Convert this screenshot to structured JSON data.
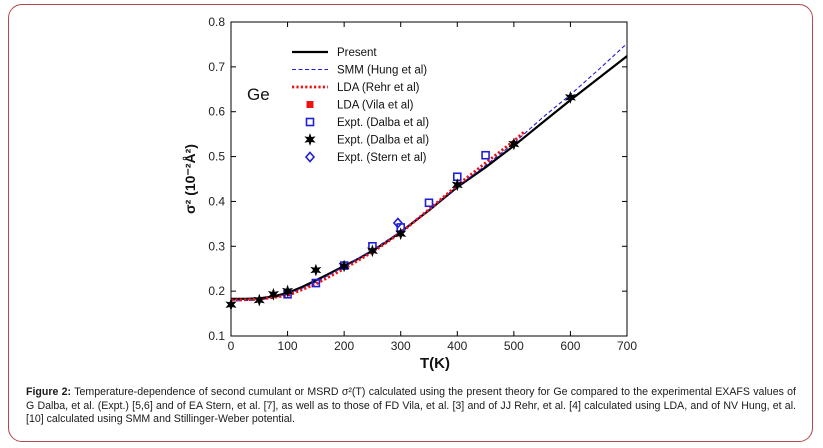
{
  "caption": {
    "label": "Figure 2:",
    "text": "Temperature-dependence of second cumulant or MSRD σ²(T) calculated using the present theory for Ge compared to the experimental EXAFS values of G Dalba, et al. (Expt.) [5,6] and of EA Stern, et al. [7], as well as to those of FD Vila, et al. [3] and of JJ Rehr, et al. [4] calculated using LDA, and of NV Hung, et al. [10] calculated using SMM and Stillinger-Weber potential."
  },
  "chart_data": {
    "type": "line",
    "annotation": "Ge",
    "xlabel": "T(K)",
    "ylabel": "σ² (10⁻²Å²)",
    "xlim": [
      0,
      700
    ],
    "ylim": [
      0.1,
      0.8
    ],
    "xticks": [
      "0",
      "100",
      "200",
      "300",
      "400",
      "500",
      "600",
      "700"
    ],
    "yticks": [
      "0.1",
      "0.2",
      "0.3",
      "0.4",
      "0.5",
      "0.6",
      "0.7",
      "0.8"
    ],
    "legend_position": "top-left",
    "series": [
      {
        "name": "Present",
        "style": "solid-black",
        "color": "#000000",
        "x": [
          0,
          25,
          50,
          75,
          100,
          125,
          150,
          175,
          200,
          225,
          250,
          275,
          300,
          350,
          400,
          450,
          500,
          550,
          600,
          650,
          700
        ],
        "y": [
          0.183,
          0.183,
          0.184,
          0.188,
          0.196,
          0.209,
          0.224,
          0.24,
          0.256,
          0.272,
          0.29,
          0.31,
          0.332,
          0.38,
          0.432,
          0.476,
          0.524,
          0.575,
          0.626,
          0.675,
          0.724
        ]
      },
      {
        "name": "SMM (Hung et al)",
        "style": "dashed-blue",
        "color": "#1f1fd8",
        "x": [
          0,
          50,
          100,
          150,
          200,
          250,
          300,
          350,
          400,
          450,
          500,
          550,
          600,
          650,
          700
        ],
        "y": [
          0.178,
          0.18,
          0.192,
          0.22,
          0.255,
          0.292,
          0.333,
          0.381,
          0.433,
          0.48,
          0.53,
          0.586,
          0.638,
          0.694,
          0.752
        ]
      },
      {
        "name": "LDA (Rehr et al)",
        "style": "dotted-red",
        "color": "#ee1111",
        "x": [
          0,
          50,
          100,
          150,
          200,
          250,
          300,
          350,
          400,
          450,
          500,
          520
        ],
        "y": [
          0.18,
          0.182,
          0.19,
          0.216,
          0.25,
          0.287,
          0.33,
          0.382,
          0.436,
          0.486,
          0.535,
          0.557
        ]
      },
      {
        "name": "LDA (Vila et al)",
        "style": "filled-square-red",
        "color": "#ee1111",
        "x": [],
        "y": []
      },
      {
        "name": "Expt. (Dalba et al)",
        "style": "open-square-blue",
        "color": "#1f1fd8",
        "x": [
          100,
          150,
          200,
          250,
          300,
          350,
          400,
          450
        ],
        "y": [
          0.193,
          0.218,
          0.257,
          0.3,
          0.342,
          0.397,
          0.455,
          0.503
        ]
      },
      {
        "name": "Expt. (Dalba et al)",
        "style": "star-black",
        "color": "#000000",
        "x": [
          0,
          50,
          75,
          100,
          150,
          200,
          250,
          300,
          400,
          500,
          600
        ],
        "y": [
          0.17,
          0.18,
          0.193,
          0.2,
          0.247,
          0.256,
          0.29,
          0.328,
          0.437,
          0.528,
          0.632
        ]
      },
      {
        "name": "Expt. (Stern et al)",
        "style": "open-diamond-blue",
        "color": "#1f1fd8",
        "x": [
          295
        ],
        "y": [
          0.352
        ]
      }
    ]
  }
}
